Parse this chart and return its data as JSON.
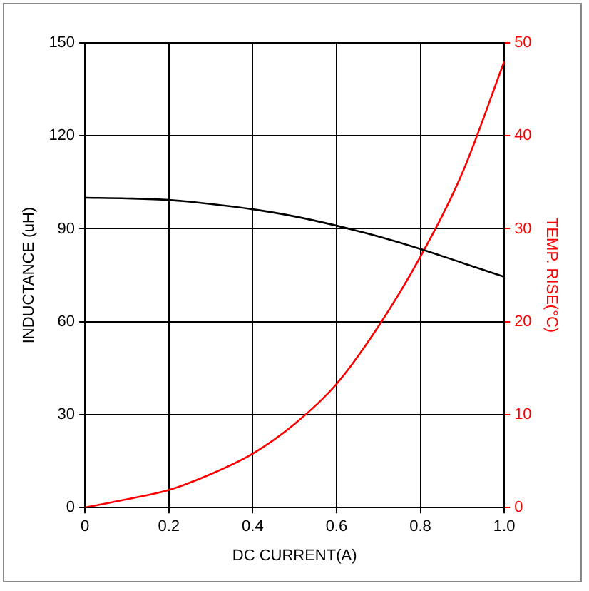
{
  "chart_data": {
    "type": "line",
    "xlabel": "DC CURRENT(A)",
    "ylabel": "INDUCTANCE (uH)",
    "y2label": "TEMP. RISE(°C)",
    "x": [
      0,
      0.1,
      0.2,
      0.3,
      0.4,
      0.5,
      0.6,
      0.7,
      0.8,
      0.9,
      1.0
    ],
    "series": [
      {
        "color": "#000000",
        "values": [
          100,
          99.8,
          99.3,
          98,
          96.3,
          94,
          91,
          87.5,
          83.5,
          79,
          74.5
        ]
      },
      {
        "color": "#ff0000",
        "axis": "y2",
        "values": [
          0,
          0.9,
          1.9,
          3.6,
          5.8,
          9,
          13.3,
          19.5,
          27,
          36,
          48
        ]
      }
    ],
    "xlim": [
      0,
      1
    ],
    "xticks": [
      0,
      0.2,
      0.4,
      0.6,
      0.8,
      {
        "value": 1,
        "label": "1.0"
      }
    ],
    "ylim": [
      0,
      150
    ],
    "yticks": [
      0,
      30,
      60,
      90,
      120,
      150
    ],
    "y2lim": [
      0,
      50
    ],
    "y2ticks": [
      0,
      10,
      20,
      30,
      40,
      50
    ],
    "grid": true,
    "marker": "none",
    "line_style": "solid"
  }
}
